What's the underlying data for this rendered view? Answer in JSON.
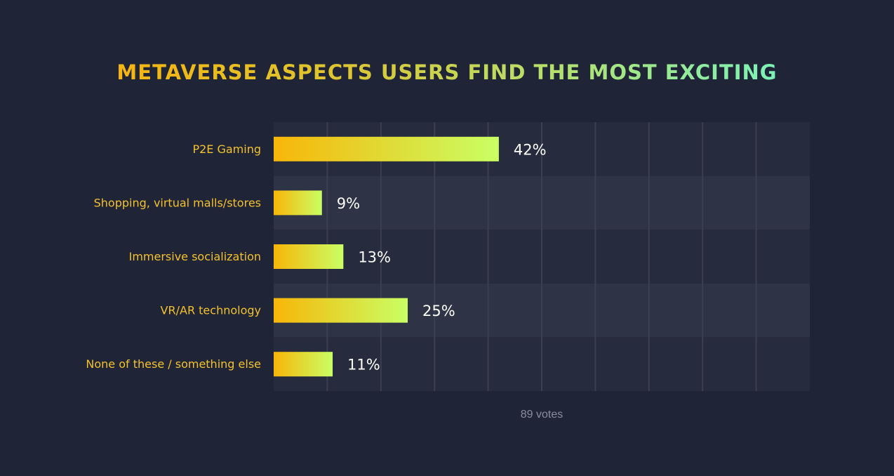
{
  "title": "METAVERSE ASPECTS USERS FIND THE MOST EXCITING",
  "footer": "89 votes",
  "colors": {
    "background": "#1f2437",
    "row_dark": "#262b3d",
    "row_light": "#2e3345",
    "gridline": "#3a3f51",
    "category_label": "#f4c22b",
    "value_label": "#ffffff",
    "bar_gradient_start": "#f8b608",
    "bar_gradient_end": "#c9ff64"
  },
  "chart_data": {
    "type": "bar",
    "orientation": "horizontal",
    "title": "METAVERSE ASPECTS USERS FIND THE MOST EXCITING",
    "categories": [
      "P2E Gaming",
      "Shopping, virtual malls/stores",
      "Immersive socialization",
      "VR/AR technology",
      "None of these / something else"
    ],
    "values": [
      42,
      9,
      13,
      25,
      11
    ],
    "value_labels": [
      "42%",
      "9%",
      "13%",
      "25%",
      "11%"
    ],
    "xlim": [
      0,
      100
    ],
    "grid": true
  }
}
